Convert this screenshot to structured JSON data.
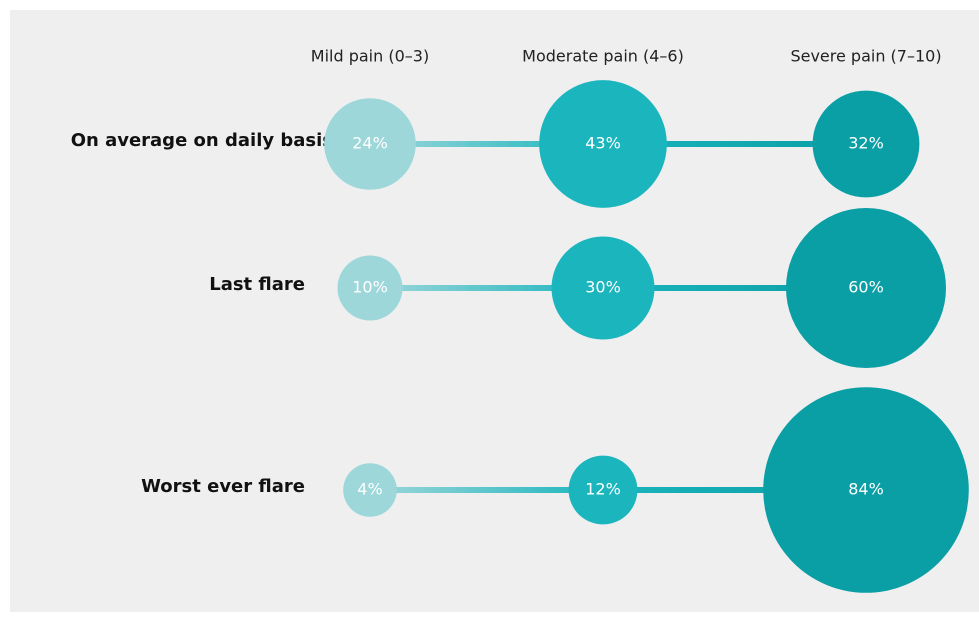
{
  "chart_data": {
    "type": "bubble",
    "categories": [
      "On average on daily basis",
      "Last flare",
      "Worst ever flare"
    ],
    "series": [
      {
        "name": "Mild pain (0–3)",
        "color": "#9dd7da",
        "values": [
          24,
          10,
          4
        ],
        "value_labels": [
          "24%",
          "10%",
          "4%"
        ]
      },
      {
        "name": "Moderate pain (4–6)",
        "color": "#1bb5bd",
        "values": [
          43,
          30,
          12
        ],
        "value_labels": [
          "43%",
          "30%",
          "12%"
        ]
      },
      {
        "name": "Severe pain (7–10)",
        "color": "#0a9ea5",
        "values": [
          32,
          60,
          84
        ],
        "value_labels": [
          "32%",
          "60%",
          "84%"
        ]
      }
    ]
  }
}
